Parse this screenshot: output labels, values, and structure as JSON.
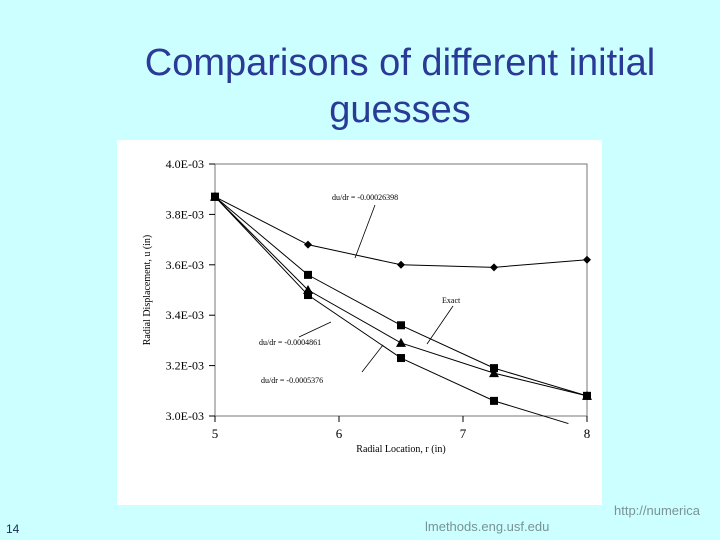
{
  "slide": {
    "title_line1": "Comparisons of different initial",
    "title_line2": "guesses",
    "number": "14",
    "footer_left": "lmethods.eng.usf.edu",
    "footer_right": "http://numerica"
  },
  "colors": {
    "background": "#ccffff",
    "title": "#2a3a96",
    "plot": "#000000"
  },
  "chart_data": {
    "type": "line",
    "xlabel": "Radial Location, r (in)",
    "ylabel": "Radial Displacement, u (in)",
    "xlim": [
      5,
      8
    ],
    "ylim": [
      0.003,
      0.004
    ],
    "x_ticks": [
      5,
      6,
      7,
      8
    ],
    "x_tick_labels": [
      "5",
      "6",
      "7",
      "8"
    ],
    "y_ticks": [
      0.003,
      0.0032,
      0.0034,
      0.0036,
      0.0038,
      0.004
    ],
    "y_tick_labels": [
      "3.0E-03",
      "3.2E-03",
      "3.4E-03",
      "3.6E-03",
      "3.8E-03",
      "4.0E-03"
    ],
    "grid": false,
    "series": [
      {
        "name": "du/dr = -0.00026398",
        "marker": "diamond",
        "x": [
          5,
          5.75,
          6.5,
          7.25,
          8
        ],
        "y": [
          0.00387,
          0.00368,
          0.0036,
          0.00359,
          0.00362
        ]
      },
      {
        "name": "Exact",
        "marker": "square",
        "x": [
          5,
          5.75,
          6.5,
          7.25,
          8
        ],
        "y": [
          0.00387,
          0.00356,
          0.00336,
          0.00319,
          0.00308
        ]
      },
      {
        "name": "du/dr = -0.0004861",
        "marker": "triangle",
        "x": [
          5,
          5.75,
          6.5,
          7.25,
          8
        ],
        "y": [
          0.00387,
          0.0035,
          0.00329,
          0.00317,
          0.00308
        ]
      },
      {
        "name": "du/dr = -0.0005376",
        "marker": "square",
        "x": [
          5,
          5.75,
          6.5,
          7.25,
          7.85
        ],
        "y": [
          0.00387,
          0.00348,
          0.00323,
          0.00306,
          0.00297
        ]
      }
    ],
    "annotations": [
      {
        "text": "du/dr = -0.00026398"
      },
      {
        "text": "Exact"
      },
      {
        "text": "du/dr = -0.0004861"
      },
      {
        "text": "du/dr = -0.0005376"
      }
    ]
  }
}
